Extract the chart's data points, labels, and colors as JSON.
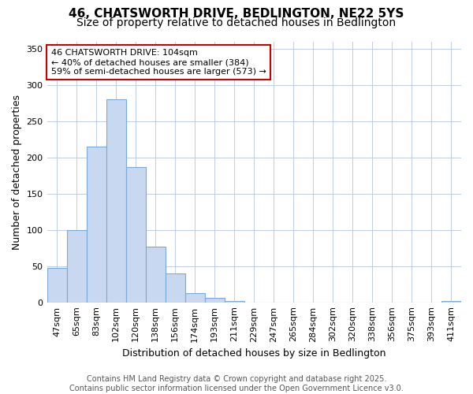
{
  "title_line1": "46, CHATSWORTH DRIVE, BEDLINGTON, NE22 5YS",
  "title_line2": "Size of property relative to detached houses in Bedlington",
  "xlabel": "Distribution of detached houses by size in Bedlington",
  "ylabel": "Number of detached properties",
  "categories": [
    "47sqm",
    "65sqm",
    "83sqm",
    "102sqm",
    "120sqm",
    "138sqm",
    "156sqm",
    "174sqm",
    "193sqm",
    "211sqm",
    "229sqm",
    "247sqm",
    "265sqm",
    "284sqm",
    "302sqm",
    "320sqm",
    "338sqm",
    "356sqm",
    "375sqm",
    "393sqm",
    "411sqm"
  ],
  "values": [
    48,
    100,
    215,
    280,
    187,
    77,
    40,
    13,
    6,
    2,
    0,
    0,
    0,
    0,
    0,
    0,
    0,
    0,
    0,
    0,
    2
  ],
  "bar_color": "#c8d8f0",
  "bar_edge_color": "#7aaad8",
  "annotation_text": "46 CHATSWORTH DRIVE: 104sqm\n← 40% of detached houses are smaller (384)\n59% of semi-detached houses are larger (573) →",
  "annotation_box_color": "#ffffff",
  "annotation_box_edge": "#cc0000",
  "ylim": [
    0,
    360
  ],
  "yticks": [
    0,
    50,
    100,
    150,
    200,
    250,
    300,
    350
  ],
  "background_color": "#ffffff",
  "plot_bg_color": "#ffffff",
  "grid_color": "#c0cce0",
  "footer_text": "Contains HM Land Registry data © Crown copyright and database right 2025.\nContains public sector information licensed under the Open Government Licence v3.0.",
  "title_fontsize": 11,
  "subtitle_fontsize": 10,
  "axis_label_fontsize": 9,
  "tick_fontsize": 8,
  "annotation_fontsize": 8,
  "footer_fontsize": 7
}
